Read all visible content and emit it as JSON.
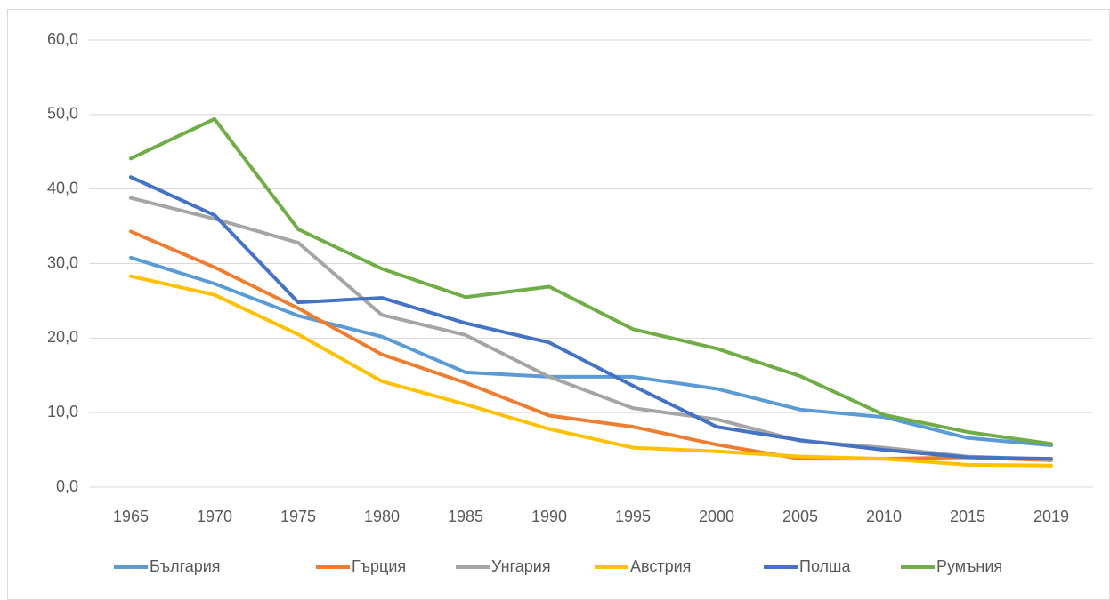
{
  "chart_data": {
    "type": "line",
    "categories": [
      "1965",
      "1970",
      "1975",
      "1980",
      "1985",
      "1990",
      "1995",
      "2000",
      "2005",
      "2010",
      "2015",
      "2019"
    ],
    "series": [
      {
        "name": "България",
        "color": "#5B9BD5",
        "values": [
          30.8,
          27.3,
          23.0,
          20.2,
          15.4,
          14.8,
          14.8,
          13.2,
          10.4,
          9.4,
          6.6,
          5.6
        ]
      },
      {
        "name": "Гърция",
        "color": "#ED7D31",
        "values": [
          34.3,
          29.5,
          24.0,
          17.8,
          14.0,
          9.6,
          8.1,
          5.7,
          3.8,
          3.8,
          4.0,
          3.6
        ]
      },
      {
        "name": "Унгария",
        "color": "#A5A5A5",
        "values": [
          38.8,
          36.0,
          32.8,
          23.1,
          20.4,
          14.8,
          10.6,
          9.1,
          6.2,
          5.3,
          4.1,
          3.7
        ]
      },
      {
        "name": "Австрия",
        "color": "#FFC000",
        "values": [
          28.3,
          25.8,
          20.5,
          14.2,
          11.1,
          7.8,
          5.3,
          4.8,
          4.1,
          3.8,
          3.0,
          2.9
        ]
      },
      {
        "name": "Полша",
        "color": "#4472C4",
        "values": [
          41.6,
          36.5,
          24.8,
          25.4,
          22.0,
          19.4,
          13.6,
          8.1,
          6.3,
          5.0,
          4.0,
          3.8
        ]
      },
      {
        "name": "Румъния",
        "color": "#70AD47",
        "values": [
          44.1,
          49.4,
          34.6,
          29.3,
          25.5,
          26.9,
          21.2,
          18.6,
          14.9,
          9.7,
          7.4,
          5.8
        ]
      }
    ],
    "ylim": [
      0,
      60
    ],
    "yticks": [
      {
        "value": 0,
        "label": "0,0"
      },
      {
        "value": 10,
        "label": "10,0"
      },
      {
        "value": 20,
        "label": "20,0"
      },
      {
        "value": 30,
        "label": "30,0"
      },
      {
        "value": 40,
        "label": "40,0"
      },
      {
        "value": 50,
        "label": "50,0"
      },
      {
        "value": 60,
        "label": "60,0"
      }
    ],
    "grid": true,
    "legend": "bottom"
  }
}
